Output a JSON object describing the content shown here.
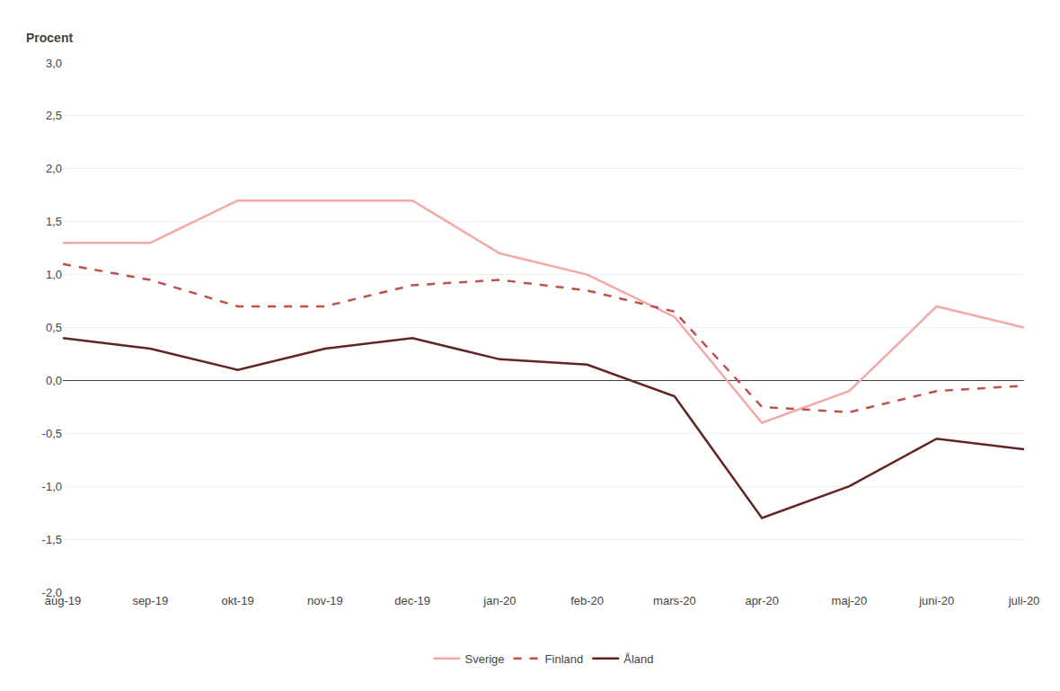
{
  "chart_data": {
    "type": "line",
    "ylabel": "Procent",
    "categories": [
      "aug-19",
      "sep-19",
      "okt-19",
      "nov-19",
      "dec-19",
      "jan-20",
      "feb-20",
      "mars-20",
      "apr-20",
      "maj-20",
      "juni-20",
      "juli-20"
    ],
    "series": [
      {
        "name": "Sverige",
        "color": "#f4a8a8",
        "line_style": "solid",
        "values": [
          1.3,
          1.3,
          1.7,
          1.7,
          1.7,
          1.2,
          1.0,
          0.6,
          -0.4,
          -0.1,
          0.7,
          0.5
        ]
      },
      {
        "name": "Finland",
        "color": "#c0504d",
        "line_style": "dashed",
        "values": [
          1.1,
          0.95,
          0.7,
          0.7,
          0.9,
          0.95,
          0.85,
          0.65,
          -0.25,
          -0.3,
          -0.1,
          -0.05
        ]
      },
      {
        "name": "Åland",
        "color": "#632523",
        "line_style": "solid",
        "values": [
          0.4,
          0.3,
          0.1,
          0.3,
          0.4,
          0.2,
          0.15,
          -0.15,
          -1.3,
          -1.0,
          -0.55,
          -0.65
        ]
      }
    ],
    "ylim": [
      -2.0,
      3.0
    ],
    "yticks": [
      {
        "value": -2.0,
        "label": "-2,0"
      },
      {
        "value": -1.5,
        "label": "-1,5"
      },
      {
        "value": -1.0,
        "label": "-1,0"
      },
      {
        "value": -0.5,
        "label": "-0,5"
      },
      {
        "value": 0.0,
        "label": "0,0"
      },
      {
        "value": 0.5,
        "label": "0,5"
      },
      {
        "value": 1.0,
        "label": "1,0"
      },
      {
        "value": 1.5,
        "label": "1,5"
      },
      {
        "value": 2.0,
        "label": "2,0"
      },
      {
        "value": 2.5,
        "label": "2,5"
      },
      {
        "value": 3.0,
        "label": "3,0"
      }
    ],
    "grid": true,
    "legend": "bottom"
  }
}
